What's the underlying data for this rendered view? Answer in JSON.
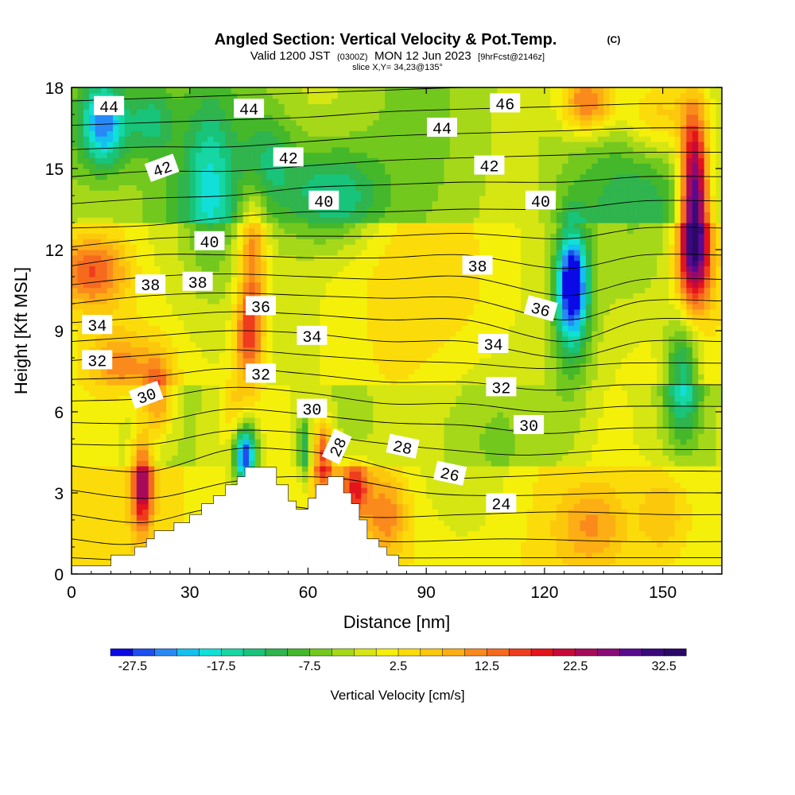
{
  "chart_data": {
    "type": "heatmap",
    "title": "Angled Section: Vertical Velocity & Pot.Temp.",
    "title_unit": "(C)",
    "subtitle_parts": [
      "Valid 1200 JST",
      "(0300Z)",
      "MON 12 Jun 2023",
      "[9hrFcst@2146z]"
    ],
    "slice_label": "slice X,Y= 34,23@135°",
    "xlabel": "Distance [nm]",
    "ylabel": "Height [Kft MSL]",
    "xlim": [
      0,
      165
    ],
    "ylim": [
      0,
      18
    ],
    "x_ticks": [
      "0",
      "30",
      "60",
      "90",
      "120",
      "150"
    ],
    "y_ticks": [
      "0",
      "3",
      "6",
      "9",
      "12",
      "15",
      "18"
    ],
    "colorbar": {
      "label": "Vertical Velocity [cm/s]",
      "min": -30,
      "max": 35,
      "step": 2.5,
      "tick_labels": [
        "-27.5",
        "-17.5",
        "-7.5",
        "2.5",
        "12.5",
        "22.5",
        "32.5"
      ],
      "colors": [
        "#0a0ae6",
        "#1e50f0",
        "#2888f5",
        "#14c0f0",
        "#10e0d8",
        "#16d6a4",
        "#18c47a",
        "#2fb44e",
        "#44b82a",
        "#73c81e",
        "#a6d81a",
        "#d6e612",
        "#f5f00a",
        "#fbdc0a",
        "#fcc80c",
        "#fdae14",
        "#fb8a1c",
        "#f66a1e",
        "#ef3c1e",
        "#e4141c",
        "#c80a3a",
        "#a80a5a",
        "#8a0a76",
        "#5a0a90",
        "#3a0a7c",
        "#2a0868"
      ]
    },
    "terrain_profile": [
      [
        0,
        0.3
      ],
      [
        10,
        0.3
      ],
      [
        10,
        0.7
      ],
      [
        16,
        0.7
      ],
      [
        16,
        1.0
      ],
      [
        19,
        1.0
      ],
      [
        19,
        1.3
      ],
      [
        21,
        1.3
      ],
      [
        21,
        1.6
      ],
      [
        26,
        1.6
      ],
      [
        26,
        1.9
      ],
      [
        30,
        1.9
      ],
      [
        30,
        2.2
      ],
      [
        33,
        2.2
      ],
      [
        33,
        2.6
      ],
      [
        36,
        2.6
      ],
      [
        36,
        2.9
      ],
      [
        39,
        2.9
      ],
      [
        39,
        3.3
      ],
      [
        42,
        3.3
      ],
      [
        42,
        3.6
      ],
      [
        44,
        3.6
      ],
      [
        44,
        3.95
      ],
      [
        52,
        3.95
      ],
      [
        52,
        3.3
      ],
      [
        55,
        3.3
      ],
      [
        55,
        2.7
      ],
      [
        57,
        2.7
      ],
      [
        57,
        2.4
      ],
      [
        60,
        2.4
      ],
      [
        60,
        2.8
      ],
      [
        62,
        2.8
      ],
      [
        62,
        3.3
      ],
      [
        65,
        3.3
      ],
      [
        65,
        3.6
      ],
      [
        69,
        3.6
      ],
      [
        69,
        3.0
      ],
      [
        71,
        3.0
      ],
      [
        71,
        2.6
      ],
      [
        73,
        2.6
      ],
      [
        73,
        2.0
      ],
      [
        75,
        2.0
      ],
      [
        75,
        1.3
      ],
      [
        78,
        1.3
      ],
      [
        78,
        1.0
      ],
      [
        80,
        1.0
      ],
      [
        80,
        0.7
      ],
      [
        83,
        0.7
      ],
      [
        83,
        0.3
      ],
      [
        165,
        0.3
      ]
    ],
    "anomalies": [
      {
        "x": 8,
        "y": 16.7,
        "sx": 6,
        "sy": 1.6,
        "w": -22
      },
      {
        "x": 20,
        "y": 16.8,
        "sx": 6,
        "sy": 1.3,
        "w": -10
      },
      {
        "x": 66,
        "y": 14.0,
        "sx": 12,
        "sy": 1.8,
        "w": -13
      },
      {
        "x": 50,
        "y": 15.3,
        "sx": 7,
        "sy": 1.7,
        "w": -8
      },
      {
        "x": 35,
        "y": 14.5,
        "sx": 6,
        "sy": 3.0,
        "w": -10
      },
      {
        "x": 28,
        "y": 12.5,
        "sx": 18,
        "sy": 4.0,
        "w": -4
      },
      {
        "x": 127,
        "y": 10.7,
        "sx": 3.8,
        "sy": 2.0,
        "w": -28
      },
      {
        "x": 127,
        "y": 9.0,
        "sx": 6,
        "sy": 4.0,
        "w": -6
      },
      {
        "x": 145,
        "y": 13.0,
        "sx": 15,
        "sy": 4.0,
        "w": -7
      },
      {
        "x": 155,
        "y": 7.3,
        "sx": 4.5,
        "sy": 2.2,
        "w": -16
      },
      {
        "x": 158,
        "y": 14.0,
        "sx": 3.5,
        "sy": 3.0,
        "w": 33
      },
      {
        "x": 158,
        "y": 11.5,
        "sx": 5,
        "sy": 1.8,
        "w": 15
      },
      {
        "x": 131,
        "y": 17.5,
        "sx": 7,
        "sy": 1.2,
        "w": 18
      },
      {
        "x": 148,
        "y": 17.0,
        "sx": 10,
        "sy": 1.6,
        "w": 12
      },
      {
        "x": 5,
        "y": 11.2,
        "sx": 9,
        "sy": 1.3,
        "w": 14
      },
      {
        "x": 12,
        "y": 7.8,
        "sx": 8,
        "sy": 1.2,
        "w": 9
      },
      {
        "x": 46,
        "y": 12.0,
        "sx": 3.5,
        "sy": 2.3,
        "w": 13
      },
      {
        "x": 45,
        "y": 8.8,
        "sx": 3.5,
        "sy": 1.8,
        "w": 17
      },
      {
        "x": 18,
        "y": 3.3,
        "sx": 2.5,
        "sy": 1.6,
        "w": 22
      },
      {
        "x": 22,
        "y": 6.6,
        "sx": 4.0,
        "sy": 1.5,
        "w": 13
      },
      {
        "x": 41,
        "y": 6.0,
        "sx": 3.0,
        "sy": 1.5,
        "w": 5
      },
      {
        "x": 44,
        "y": 4.4,
        "sx": 2.8,
        "sy": 1.1,
        "w": -29
      },
      {
        "x": 59,
        "y": 4.6,
        "sx": 1.6,
        "sy": 1.3,
        "w": -12
      },
      {
        "x": 64,
        "y": 4.4,
        "sx": 2.5,
        "sy": 1.2,
        "w": 18
      },
      {
        "x": 72,
        "y": 3.2,
        "sx": 3.5,
        "sy": 1.0,
        "w": 15
      },
      {
        "x": 80,
        "y": 2.2,
        "sx": 5.0,
        "sy": 1.4,
        "w": 9
      },
      {
        "x": 132,
        "y": 1.8,
        "sx": 8,
        "sy": 1.4,
        "w": 7
      },
      {
        "x": 150,
        "y": 2.2,
        "sx": 6,
        "sy": 1.6,
        "w": 6
      },
      {
        "x": 100,
        "y": 5.0,
        "sx": 15,
        "sy": 3.0,
        "w": -4
      },
      {
        "x": 95,
        "y": 11.0,
        "sx": 20,
        "sy": 3.0,
        "w": 2
      }
    ],
    "theta_lines": [
      [
        [
          0,
          0.6
        ],
        [
          20,
          0.5
        ],
        [
          40,
          0.7
        ],
        [
          60,
          0.7
        ],
        [
          80,
          0.6
        ],
        [
          100,
          0.6
        ],
        [
          120,
          0.6
        ],
        [
          140,
          0.6
        ],
        [
          165,
          0.6
        ]
      ],
      [
        [
          0,
          1.3
        ],
        [
          15,
          1.1
        ],
        [
          35,
          1.6
        ],
        [
          60,
          1.6
        ],
        [
          80,
          1.2
        ],
        [
          110,
          1.3
        ],
        [
          140,
          1.2
        ],
        [
          165,
          1.2
        ]
      ],
      [
        [
          0,
          2.2
        ],
        [
          18,
          1.9
        ],
        [
          35,
          2.4
        ],
        [
          55,
          2.5
        ],
        [
          75,
          2.1
        ],
        [
          100,
          2.2
        ],
        [
          125,
          2.3
        ],
        [
          150,
          2.2
        ],
        [
          165,
          2.2
        ]
      ],
      [
        [
          0,
          3.1
        ],
        [
          20,
          2.8
        ],
        [
          40,
          3.4
        ],
        [
          55,
          3.6
        ],
        [
          70,
          3.5
        ],
        [
          90,
          3.0
        ],
        [
          110,
          2.9
        ],
        [
          140,
          3.0
        ],
        [
          165,
          3.0
        ]
      ],
      [
        [
          0,
          4.0
        ],
        [
          20,
          3.8
        ],
        [
          40,
          4.6
        ],
        [
          55,
          4.6
        ],
        [
          70,
          4.3
        ],
        [
          90,
          3.6
        ],
        [
          110,
          3.6
        ],
        [
          140,
          3.8
        ],
        [
          165,
          3.8
        ]
      ],
      [
        [
          0,
          4.8
        ],
        [
          20,
          4.8
        ],
        [
          40,
          5.3
        ],
        [
          60,
          5.2
        ],
        [
          75,
          4.9
        ],
        [
          95,
          4.6
        ],
        [
          115,
          4.4
        ],
        [
          140,
          4.6
        ],
        [
          165,
          4.6
        ]
      ],
      [
        [
          0,
          5.6
        ],
        [
          20,
          5.6
        ],
        [
          40,
          6.1
        ],
        [
          60,
          5.9
        ],
        [
          80,
          5.6
        ],
        [
          100,
          5.5
        ],
        [
          120,
          5.2
        ],
        [
          140,
          5.4
        ],
        [
          165,
          5.4
        ]
      ],
      [
        [
          0,
          6.4
        ],
        [
          20,
          6.5
        ],
        [
          40,
          6.9
        ],
        [
          60,
          6.7
        ],
        [
          80,
          6.3
        ],
        [
          100,
          6.3
        ],
        [
          120,
          6.0
        ],
        [
          140,
          6.2
        ],
        [
          165,
          6.2
        ]
      ],
      [
        [
          0,
          7.2
        ],
        [
          20,
          7.3
        ],
        [
          40,
          7.6
        ],
        [
          60,
          7.4
        ],
        [
          80,
          7.1
        ],
        [
          100,
          7.1
        ],
        [
          120,
          6.8
        ],
        [
          140,
          7.0
        ],
        [
          165,
          7.0
        ]
      ],
      [
        [
          0,
          7.9
        ],
        [
          20,
          8.1
        ],
        [
          40,
          8.3
        ],
        [
          60,
          8.1
        ],
        [
          80,
          7.9
        ],
        [
          100,
          7.8
        ],
        [
          120,
          7.6
        ],
        [
          140,
          7.8
        ],
        [
          165,
          7.8
        ]
      ],
      [
        [
          0,
          8.6
        ],
        [
          20,
          8.8
        ],
        [
          40,
          9.0
        ],
        [
          60,
          8.9
        ],
        [
          80,
          8.6
        ],
        [
          100,
          8.6
        ],
        [
          125,
          8.0
        ],
        [
          145,
          8.6
        ],
        [
          165,
          8.6
        ]
      ],
      [
        [
          0,
          9.3
        ],
        [
          20,
          9.5
        ],
        [
          40,
          9.7
        ],
        [
          60,
          9.6
        ],
        [
          80,
          9.4
        ],
        [
          100,
          9.4
        ],
        [
          125,
          8.6
        ],
        [
          145,
          9.4
        ],
        [
          165,
          9.4
        ]
      ],
      [
        [
          0,
          10.0
        ],
        [
          20,
          10.3
        ],
        [
          40,
          10.4
        ],
        [
          60,
          10.3
        ],
        [
          80,
          10.2
        ],
        [
          100,
          10.2
        ],
        [
          125,
          9.4
        ],
        [
          145,
          10.1
        ],
        [
          165,
          10.1
        ]
      ],
      [
        [
          0,
          10.7
        ],
        [
          20,
          11.0
        ],
        [
          40,
          11.1
        ],
        [
          60,
          11.0
        ],
        [
          80,
          10.9
        ],
        [
          100,
          11.0
        ],
        [
          125,
          10.3
        ],
        [
          145,
          10.9
        ],
        [
          165,
          10.9
        ]
      ],
      [
        [
          0,
          11.4
        ],
        [
          20,
          11.8
        ],
        [
          40,
          11.8
        ],
        [
          60,
          11.7
        ],
        [
          80,
          11.7
        ],
        [
          100,
          11.8
        ],
        [
          125,
          11.3
        ],
        [
          145,
          11.8
        ],
        [
          165,
          11.8
        ]
      ],
      [
        [
          0,
          12.1
        ],
        [
          20,
          12.4
        ],
        [
          40,
          12.5
        ],
        [
          60,
          12.5
        ],
        [
          80,
          12.5
        ],
        [
          100,
          12.6
        ],
        [
          125,
          12.4
        ],
        [
          145,
          12.8
        ],
        [
          165,
          12.8
        ]
      ],
      [
        [
          0,
          12.8
        ],
        [
          20,
          12.9
        ],
        [
          40,
          13.2
        ],
        [
          60,
          13.4
        ],
        [
          80,
          13.4
        ],
        [
          100,
          13.5
        ],
        [
          125,
          13.5
        ],
        [
          145,
          13.8
        ],
        [
          165,
          13.8
        ]
      ],
      [
        [
          0,
          13.7
        ],
        [
          20,
          13.9
        ],
        [
          40,
          14.0
        ],
        [
          60,
          14.3
        ],
        [
          80,
          14.4
        ],
        [
          100,
          14.5
        ],
        [
          125,
          14.5
        ],
        [
          145,
          14.7
        ],
        [
          165,
          14.7
        ]
      ],
      [
        [
          0,
          14.7
        ],
        [
          20,
          14.9
        ],
        [
          40,
          14.9
        ],
        [
          60,
          15.1
        ],
        [
          80,
          15.3
        ],
        [
          100,
          15.4
        ],
        [
          125,
          15.5
        ],
        [
          145,
          15.6
        ],
        [
          165,
          15.6
        ]
      ],
      [
        [
          0,
          15.7
        ],
        [
          20,
          15.8
        ],
        [
          40,
          15.8
        ],
        [
          60,
          16.0
        ],
        [
          80,
          16.2
        ],
        [
          100,
          16.3
        ],
        [
          125,
          16.4
        ],
        [
          145,
          16.5
        ],
        [
          165,
          16.5
        ]
      ],
      [
        [
          0,
          16.6
        ],
        [
          20,
          16.7
        ],
        [
          40,
          16.8
        ],
        [
          60,
          16.9
        ],
        [
          80,
          17.1
        ],
        [
          100,
          17.2
        ],
        [
          125,
          17.3
        ],
        [
          145,
          17.4
        ],
        [
          165,
          17.4
        ]
      ],
      [
        [
          0,
          17.5
        ],
        [
          20,
          17.6
        ],
        [
          40,
          17.7
        ],
        [
          60,
          17.8
        ],
        [
          80,
          17.9
        ],
        [
          100,
          18.0
        ],
        [
          125,
          18.0
        ],
        [
          145,
          18.0
        ]
      ]
    ],
    "contour_labels": [
      {
        "text": "44",
        "x": 9.5,
        "y": 17.3,
        "rot": 0
      },
      {
        "text": "44",
        "x": 45,
        "y": 17.2,
        "rot": 0
      },
      {
        "text": "46",
        "x": 110,
        "y": 17.4,
        "rot": 0
      },
      {
        "text": "44",
        "x": 94,
        "y": 16.5,
        "rot": 0
      },
      {
        "text": "42",
        "x": 23,
        "y": 15.0,
        "rot": -20
      },
      {
        "text": "42",
        "x": 55,
        "y": 15.4,
        "rot": 0
      },
      {
        "text": "42",
        "x": 106,
        "y": 15.1,
        "rot": 0
      },
      {
        "text": "40",
        "x": 64,
        "y": 13.8,
        "rot": 0
      },
      {
        "text": "40",
        "x": 119,
        "y": 13.8,
        "rot": 0
      },
      {
        "text": "40",
        "x": 35,
        "y": 12.3,
        "rot": 0
      },
      {
        "text": "38",
        "x": 103,
        "y": 11.4,
        "rot": 0
      },
      {
        "text": "38",
        "x": 20,
        "y": 10.7,
        "rot": 0
      },
      {
        "text": "38",
        "x": 32,
        "y": 10.8,
        "rot": 0
      },
      {
        "text": "36",
        "x": 48,
        "y": 9.9,
        "rot": 0
      },
      {
        "text": "36",
        "x": 119,
        "y": 9.8,
        "rot": 15
      },
      {
        "text": "34",
        "x": 6.5,
        "y": 9.2,
        "rot": 0
      },
      {
        "text": "34",
        "x": 61,
        "y": 8.8,
        "rot": 0
      },
      {
        "text": "34",
        "x": 107,
        "y": 8.5,
        "rot": 0
      },
      {
        "text": "32",
        "x": 6.5,
        "y": 7.9,
        "rot": 0
      },
      {
        "text": "32",
        "x": 48,
        "y": 7.4,
        "rot": 0
      },
      {
        "text": "32",
        "x": 109,
        "y": 6.9,
        "rot": 0
      },
      {
        "text": "30",
        "x": 19,
        "y": 6.6,
        "rot": -20
      },
      {
        "text": "30",
        "x": 61,
        "y": 6.1,
        "rot": 0
      },
      {
        "text": "30",
        "x": 116,
        "y": 5.5,
        "rot": 0
      },
      {
        "text": "28",
        "x": 67.5,
        "y": 4.7,
        "rot": -65
      },
      {
        "text": "28",
        "x": 84,
        "y": 4.7,
        "rot": 12
      },
      {
        "text": "26",
        "x": 96,
        "y": 3.7,
        "rot": 12
      },
      {
        "text": "24",
        "x": 109,
        "y": 2.6,
        "rot": 0
      }
    ]
  }
}
